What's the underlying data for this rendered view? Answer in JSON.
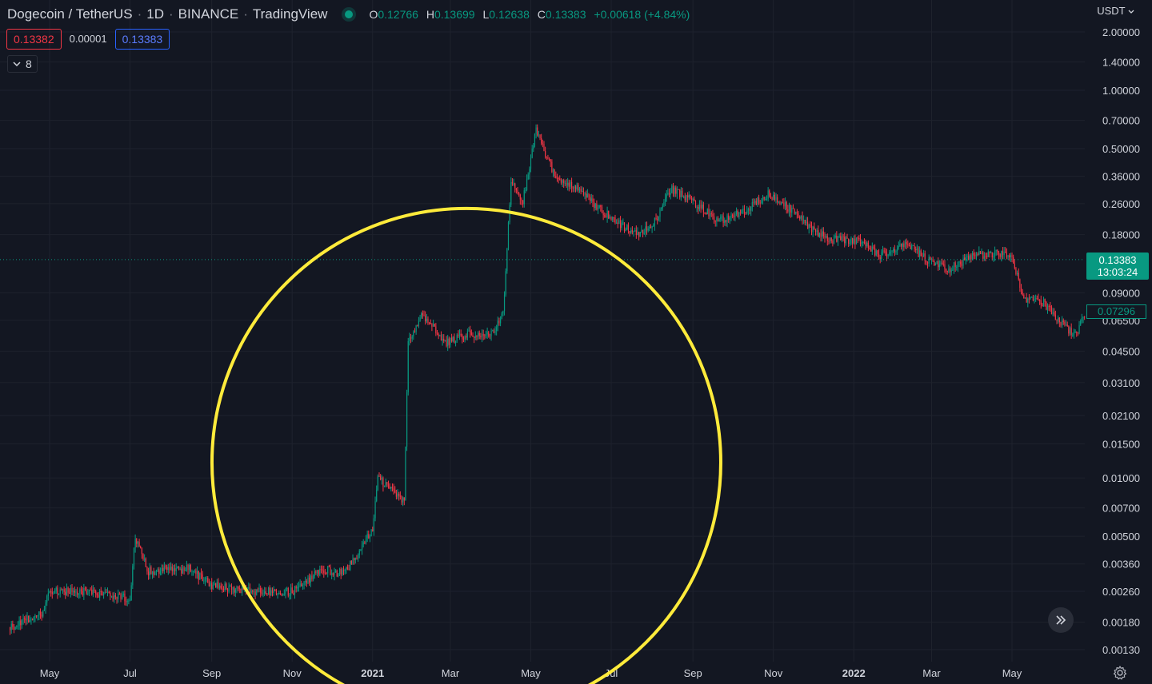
{
  "header": {
    "symbol": "Dogecoin / TetherUS",
    "interval": "1D",
    "exchange": "BINANCE",
    "source": "TradingView",
    "ohlc": {
      "o_label": "O",
      "o": "0.12766",
      "h_label": "H",
      "h": "0.13699",
      "l_label": "L",
      "l": "0.12638",
      "c_label": "C",
      "c": "0.13383",
      "change": "+0.00618 (+4.84%)"
    }
  },
  "quote": {
    "bid": "0.13382",
    "spread": "0.00001",
    "ask": "0.13383"
  },
  "indicators_toggle": {
    "count": "8"
  },
  "price_axis": {
    "currency": "USDT",
    "last_price": "0.13383",
    "countdown": "13:03:24",
    "ma_value": "0.07296"
  },
  "colors": {
    "background": "#131722",
    "up": "#089981",
    "down": "#f23645",
    "annotation": "#ffeb3b",
    "grid": "#1e222d"
  },
  "icons": {
    "status": "market-open-dot-icon",
    "collapse": "chevron-down-icon",
    "scroll": "double-chevron-right-icon",
    "settings": "gear-icon"
  },
  "chart_data": {
    "type": "candlestick",
    "scale": "log",
    "ylim": [
      0.0012,
      2.2
    ],
    "x_range": [
      "2020-04-01",
      "2022-06-25"
    ],
    "grid": true,
    "y_ticks": [
      "2.00000",
      "1.40000",
      "1.00000",
      "0.70000",
      "0.50000",
      "0.36000",
      "0.26000",
      "0.18000",
      "0.09000",
      "0.06500",
      "0.04500",
      "0.03100",
      "0.02100",
      "0.01500",
      "0.01000",
      "0.00700",
      "0.00500",
      "0.00360",
      "0.00260",
      "0.00180",
      "0.00130"
    ],
    "x_ticks": [
      {
        "date": "2020-05-01",
        "label": "May"
      },
      {
        "date": "2020-07-01",
        "label": "Jul"
      },
      {
        "date": "2020-09-01",
        "label": "Sep"
      },
      {
        "date": "2020-11-01",
        "label": "Nov"
      },
      {
        "date": "2021-01-01",
        "label": "2021",
        "bold": true
      },
      {
        "date": "2021-03-01",
        "label": "Mar"
      },
      {
        "date": "2021-05-01",
        "label": "May"
      },
      {
        "date": "2021-07-01",
        "label": "Jul"
      },
      {
        "date": "2021-09-01",
        "label": "Sep"
      },
      {
        "date": "2021-11-01",
        "label": "Nov"
      },
      {
        "date": "2022-01-01",
        "label": "2022",
        "bold": true
      },
      {
        "date": "2022-03-01",
        "label": "Mar"
      },
      {
        "date": "2022-05-01",
        "label": "May"
      }
    ],
    "price_path": [
      [
        "2020-04-01",
        0.0017
      ],
      [
        "2020-04-25",
        0.002
      ],
      [
        "2020-05-01",
        0.0026
      ],
      [
        "2020-05-20",
        0.0026
      ],
      [
        "2020-06-15",
        0.0025
      ],
      [
        "2020-07-01",
        0.0024
      ],
      [
        "2020-07-05",
        0.005
      ],
      [
        "2020-07-15",
        0.0033
      ],
      [
        "2020-08-15",
        0.0034
      ],
      [
        "2020-09-01",
        0.0028
      ],
      [
        "2020-10-01",
        0.0026
      ],
      [
        "2020-11-01",
        0.0026
      ],
      [
        "2020-11-25",
        0.0034
      ],
      [
        "2020-12-10",
        0.0032
      ],
      [
        "2020-12-25",
        0.0045
      ],
      [
        "2021-01-01",
        0.0055
      ],
      [
        "2021-01-05",
        0.01
      ],
      [
        "2021-01-25",
        0.0075
      ],
      [
        "2021-01-28",
        0.05
      ],
      [
        "2021-02-08",
        0.07
      ],
      [
        "2021-02-25",
        0.05
      ],
      [
        "2021-03-15",
        0.055
      ],
      [
        "2021-04-01",
        0.055
      ],
      [
        "2021-04-10",
        0.07
      ],
      [
        "2021-04-16",
        0.35
      ],
      [
        "2021-04-25",
        0.27
      ],
      [
        "2021-05-05",
        0.63
      ],
      [
        "2021-05-20",
        0.35
      ],
      [
        "2021-06-10",
        0.3
      ],
      [
        "2021-06-20",
        0.25
      ],
      [
        "2021-07-05",
        0.21
      ],
      [
        "2021-07-20",
        0.18
      ],
      [
        "2021-08-01",
        0.2
      ],
      [
        "2021-08-15",
        0.31
      ],
      [
        "2021-09-01",
        0.27
      ],
      [
        "2021-09-20",
        0.21
      ],
      [
        "2021-10-10",
        0.24
      ],
      [
        "2021-10-28",
        0.29
      ],
      [
        "2021-11-15",
        0.24
      ],
      [
        "2021-12-01",
        0.19
      ],
      [
        "2021-12-15",
        0.17
      ],
      [
        "2022-01-01",
        0.17
      ],
      [
        "2022-01-10",
        0.16
      ],
      [
        "2022-01-20",
        0.14
      ],
      [
        "2022-02-10",
        0.16
      ],
      [
        "2022-03-01",
        0.13
      ],
      [
        "2022-03-15",
        0.12
      ],
      [
        "2022-04-01",
        0.14
      ],
      [
        "2022-04-20",
        0.145
      ],
      [
        "2022-05-01",
        0.135
      ],
      [
        "2022-05-10",
        0.085
      ],
      [
        "2022-05-25",
        0.08
      ],
      [
        "2022-06-10",
        0.06
      ],
      [
        "2022-06-18",
        0.055
      ],
      [
        "2022-06-25",
        0.07
      ]
    ],
    "annotation": {
      "shape": "circle",
      "center": [
        "2021-03-01",
        0.012
      ]
    }
  }
}
